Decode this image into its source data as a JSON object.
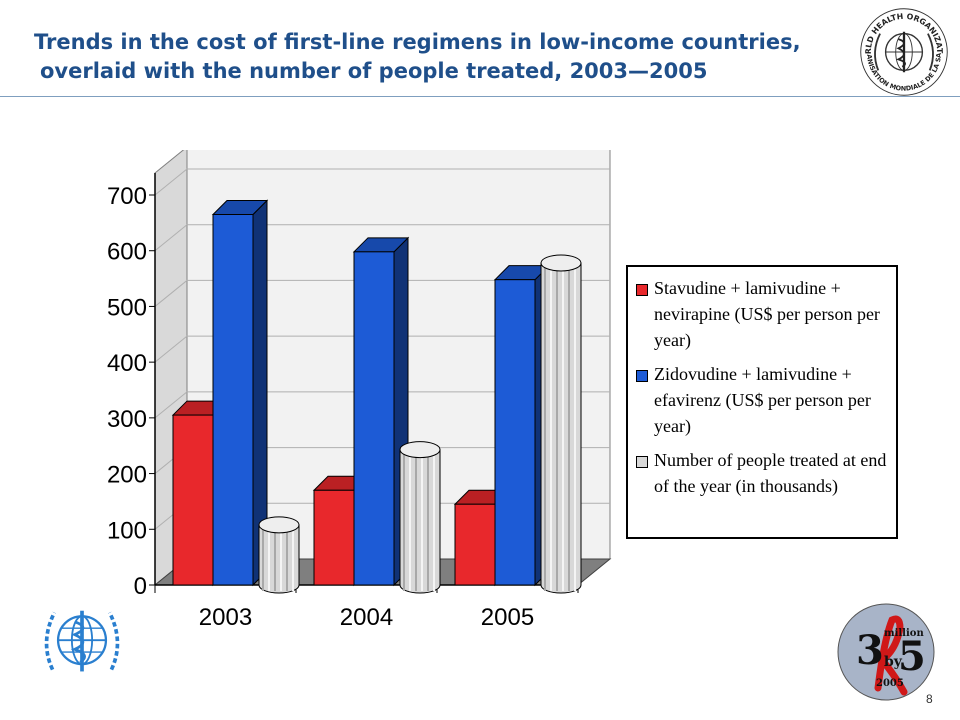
{
  "header": {
    "title_line1": "Trends in the cost of first-line regimens in low-income countries,",
    "title_line2": "overlaid with the number of people treated, 2003—2005"
  },
  "logos": {
    "who_org_text_top": "WORLD HEALTH ORGANIZATION",
    "who_org_text_bottom": "ORGANISATION MONDIALE DE LA SANTE",
    "by5_line1": "million",
    "by5_line2": "by",
    "by5_line3": "2005",
    "by5_big_left": "3",
    "by5_big_right": "5"
  },
  "page_number": "8",
  "chart_data": {
    "type": "bar",
    "categories": [
      "2003",
      "2004",
      "2005"
    ],
    "series": [
      {
        "name": "Stavudine + lamivudine + nevirapine (US$ per person per year)",
        "values": [
          305,
          170,
          145
        ],
        "color": "#e8282c",
        "shape": "box"
      },
      {
        "name": "Zidovudine + lamivudine + efavirenz (US$ per person per year)",
        "values": [
          665,
          598,
          548
        ],
        "color": "#1d5bd6",
        "shape": "box"
      },
      {
        "name": "Number of people treated at end of the year (in thousands)",
        "values": [
          108,
          243,
          578
        ],
        "color": "#d8d8d8",
        "shape": "cylinder"
      }
    ],
    "yticks": [
      "0",
      "100",
      "200",
      "300",
      "400",
      "500",
      "600",
      "700"
    ],
    "ylim": [
      0,
      700
    ],
    "grid": true,
    "legend_position": "right",
    "title": "",
    "xlabel": "",
    "ylabel": ""
  }
}
